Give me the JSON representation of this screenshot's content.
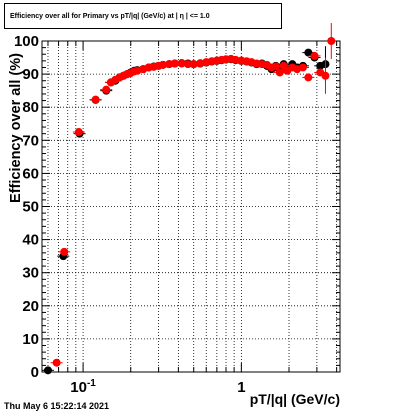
{
  "title": "Efficiency over all for Primary vs pT/|q| (GeV/c) at | η | <= 1.0",
  "footer_timestamp": "Thu May  6 15:22:14 2021",
  "chart_data": {
    "type": "scatter",
    "title": "Efficiency over all for Primary vs pT/|q| (GeV/c) at | η | <= 1.0",
    "xlabel": "pT/|q| (GeV/c)",
    "ylabel": "Efficiency over all (%)",
    "x_scale": "log",
    "xlim": [
      0.055,
      4.2
    ],
    "ylim": [
      0,
      100
    ],
    "x_tick_labels": [
      {
        "value": 0.1,
        "label": "10^-1"
      },
      {
        "value": 1,
        "label": "1"
      }
    ],
    "y_ticks": [
      0,
      10,
      20,
      30,
      40,
      50,
      60,
      70,
      80,
      90,
      100
    ],
    "grid": true,
    "series": [
      {
        "color": "#000000",
        "points": [
          {
            "x": 0.06,
            "y": 0.5
          },
          {
            "x": 0.075,
            "y": 35
          },
          {
            "x": 0.095,
            "y": 72
          },
          {
            "x": 0.12,
            "y": 82.2
          },
          {
            "x": 0.14,
            "y": 85
          },
          {
            "x": 0.15,
            "y": 87.5
          },
          {
            "x": 0.16,
            "y": 88
          },
          {
            "x": 0.17,
            "y": 89
          },
          {
            "x": 0.18,
            "y": 89.5
          },
          {
            "x": 0.19,
            "y": 90
          },
          {
            "x": 0.2,
            "y": 90.5
          },
          {
            "x": 0.21,
            "y": 91
          },
          {
            "x": 0.22,
            "y": 91.2
          },
          {
            "x": 0.24,
            "y": 91.5
          },
          {
            "x": 0.26,
            "y": 92
          },
          {
            "x": 0.28,
            "y": 92.3
          },
          {
            "x": 0.3,
            "y": 92.5
          },
          {
            "x": 0.32,
            "y": 92.8
          },
          {
            "x": 0.35,
            "y": 93
          },
          {
            "x": 0.38,
            "y": 93.2
          },
          {
            "x": 0.42,
            "y": 93.3
          },
          {
            "x": 0.46,
            "y": 93.2
          },
          {
            "x": 0.5,
            "y": 93
          },
          {
            "x": 0.55,
            "y": 93.2
          },
          {
            "x": 0.6,
            "y": 93.5
          },
          {
            "x": 0.65,
            "y": 93.8
          },
          {
            "x": 0.7,
            "y": 94
          },
          {
            "x": 0.75,
            "y": 94.2
          },
          {
            "x": 0.8,
            "y": 94.4
          },
          {
            "x": 0.86,
            "y": 94.5
          },
          {
            "x": 0.92,
            "y": 94.2
          },
          {
            "x": 1.0,
            "y": 94
          },
          {
            "x": 1.08,
            "y": 93.8
          },
          {
            "x": 1.16,
            "y": 93.5
          },
          {
            "x": 1.25,
            "y": 93
          },
          {
            "x": 1.35,
            "y": 93.2
          },
          {
            "x": 1.45,
            "y": 92.5
          },
          {
            "x": 1.55,
            "y": 91.5
          },
          {
            "x": 1.65,
            "y": 92.5
          },
          {
            "x": 1.75,
            "y": 91
          },
          {
            "x": 1.85,
            "y": 93
          },
          {
            "x": 1.95,
            "y": 91.5
          },
          {
            "x": 2.1,
            "y": 93
          },
          {
            "x": 2.25,
            "y": 92
          },
          {
            "x": 2.45,
            "y": 92.5
          },
          {
            "x": 2.65,
            "y": 96.5
          },
          {
            "x": 2.9,
            "y": 95
          },
          {
            "x": 3.15,
            "y": 92.5
          },
          {
            "x": 3.4,
            "y": 93
          }
        ]
      },
      {
        "color": "#ff0000",
        "points": [
          {
            "x": 0.068,
            "y": 2.8
          },
          {
            "x": 0.076,
            "y": 36.3
          },
          {
            "x": 0.094,
            "y": 72.5
          },
          {
            "x": 0.12,
            "y": 82.3
          },
          {
            "x": 0.14,
            "y": 85.3
          },
          {
            "x": 0.15,
            "y": 87.5
          },
          {
            "x": 0.16,
            "y": 88.3
          },
          {
            "x": 0.17,
            "y": 89
          },
          {
            "x": 0.18,
            "y": 89.5
          },
          {
            "x": 0.19,
            "y": 90
          },
          {
            "x": 0.2,
            "y": 90.3
          },
          {
            "x": 0.21,
            "y": 90.8
          },
          {
            "x": 0.22,
            "y": 91
          },
          {
            "x": 0.24,
            "y": 91.5
          },
          {
            "x": 0.26,
            "y": 92
          },
          {
            "x": 0.28,
            "y": 92.2
          },
          {
            "x": 0.3,
            "y": 92.5
          },
          {
            "x": 0.32,
            "y": 92.8
          },
          {
            "x": 0.35,
            "y": 93
          },
          {
            "x": 0.38,
            "y": 93.2
          },
          {
            "x": 0.42,
            "y": 93.2
          },
          {
            "x": 0.46,
            "y": 93
          },
          {
            "x": 0.5,
            "y": 93
          },
          {
            "x": 0.55,
            "y": 93.3
          },
          {
            "x": 0.6,
            "y": 93.6
          },
          {
            "x": 0.65,
            "y": 93.9
          },
          {
            "x": 0.7,
            "y": 94.1
          },
          {
            "x": 0.75,
            "y": 94.3
          },
          {
            "x": 0.8,
            "y": 94.5
          },
          {
            "x": 0.86,
            "y": 94.6
          },
          {
            "x": 0.92,
            "y": 94.3
          },
          {
            "x": 1.0,
            "y": 94.1
          },
          {
            "x": 1.08,
            "y": 93.9
          },
          {
            "x": 1.16,
            "y": 93.6
          },
          {
            "x": 1.25,
            "y": 93.2
          },
          {
            "x": 1.35,
            "y": 93
          },
          {
            "x": 1.45,
            "y": 92.8
          },
          {
            "x": 1.55,
            "y": 92
          },
          {
            "x": 1.65,
            "y": 92.3
          },
          {
            "x": 1.75,
            "y": 90.5
          },
          {
            "x": 1.85,
            "y": 92.5
          },
          {
            "x": 1.95,
            "y": 91
          },
          {
            "x": 2.1,
            "y": 92
          },
          {
            "x": 2.25,
            "y": 91.5
          },
          {
            "x": 2.45,
            "y": 92
          },
          {
            "x": 2.65,
            "y": 89
          },
          {
            "x": 2.9,
            "y": 95.5
          },
          {
            "x": 3.15,
            "y": 90.5
          },
          {
            "x": 3.4,
            "y": 89.5
          },
          {
            "x": 3.7,
            "y": 100
          }
        ]
      }
    ]
  }
}
